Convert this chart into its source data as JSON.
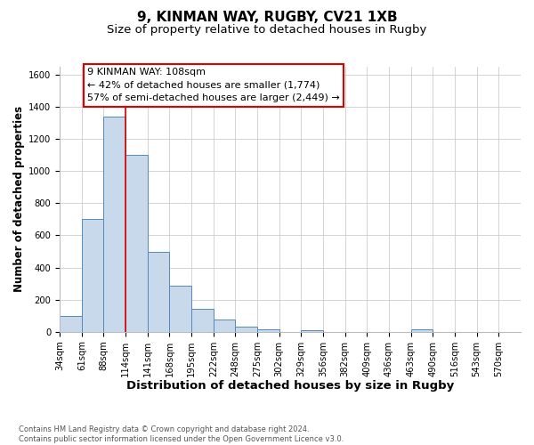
{
  "title": "9, KINMAN WAY, RUGBY, CV21 1XB",
  "subtitle": "Size of property relative to detached houses in Rugby",
  "xlabel": "Distribution of detached houses by size in Rugby",
  "ylabel": "Number of detached properties",
  "bin_labels": [
    "34sqm",
    "61sqm",
    "88sqm",
    "114sqm",
    "141sqm",
    "168sqm",
    "195sqm",
    "222sqm",
    "248sqm",
    "275sqm",
    "302sqm",
    "329sqm",
    "356sqm",
    "382sqm",
    "409sqm",
    "436sqm",
    "463sqm",
    "490sqm",
    "516sqm",
    "543sqm",
    "570sqm"
  ],
  "bar_heights": [
    100,
    700,
    1340,
    1100,
    500,
    285,
    140,
    75,
    30,
    15,
    0,
    10,
    0,
    0,
    0,
    0,
    15,
    0,
    0,
    0,
    0
  ],
  "bar_color": "#c9d9ec",
  "bar_edge_color": "#5588bb",
  "vline_x_idx": 3,
  "vline_color": "#dd0000",
  "ylim": [
    0,
    1650
  ],
  "yticks": [
    0,
    200,
    400,
    600,
    800,
    1000,
    1200,
    1400,
    1600
  ],
  "annotation_line1": "9 KINMAN WAY: 108sqm",
  "annotation_line2": "← 42% of detached houses are smaller (1,774)",
  "annotation_line3": "57% of semi-detached houses are larger (2,449) →",
  "footnote_line1": "Contains HM Land Registry data © Crown copyright and database right 2024.",
  "footnote_line2": "Contains public sector information licensed under the Open Government Licence v3.0.",
  "bg_color": "#ffffff",
  "grid_color": "#cccccc",
  "title_fontsize": 11,
  "subtitle_fontsize": 9.5,
  "xlabel_fontsize": 9.5,
  "ylabel_fontsize": 8.5,
  "tick_fontsize": 7.2,
  "ann_fontsize": 8.0,
  "footnote_fontsize": 6.0
}
